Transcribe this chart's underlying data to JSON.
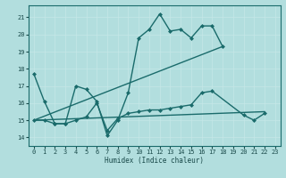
{
  "xlabel": "Humidex (Indice chaleur)",
  "xlim": [
    -0.5,
    23.5
  ],
  "ylim": [
    13.5,
    21.7
  ],
  "yticks": [
    14,
    15,
    16,
    17,
    18,
    19,
    20,
    21
  ],
  "xticks": [
    0,
    1,
    2,
    3,
    4,
    5,
    6,
    7,
    8,
    9,
    10,
    11,
    12,
    13,
    14,
    15,
    16,
    17,
    18,
    19,
    20,
    21,
    22,
    23
  ],
  "background_color": "#b2dede",
  "grid_color": "#c5e8e8",
  "line_color": "#1a6b6b",
  "lines": [
    {
      "x": [
        0,
        1,
        2,
        3,
        4,
        5,
        6,
        7,
        8,
        9,
        10,
        11,
        12,
        13,
        14,
        15,
        16,
        17,
        18
      ],
      "y": [
        17.7,
        16.1,
        14.8,
        14.8,
        17.0,
        16.8,
        16.1,
        14.1,
        15.0,
        16.6,
        19.8,
        20.3,
        21.2,
        20.2,
        20.3,
        19.8,
        20.5,
        20.5,
        19.3
      ],
      "marker": "D",
      "markersize": 2.0,
      "linewidth": 1.0
    },
    {
      "x": [
        0,
        1,
        2,
        3,
        4,
        5,
        6,
        7,
        8,
        9,
        10,
        11,
        12,
        13,
        14,
        15,
        16,
        17,
        20,
        21,
        22
      ],
      "y": [
        15.0,
        15.0,
        14.8,
        14.8,
        15.0,
        15.2,
        16.0,
        14.4,
        15.1,
        15.4,
        15.5,
        15.6,
        15.6,
        15.7,
        15.8,
        15.9,
        16.6,
        16.7,
        15.3,
        15.0,
        15.4
      ],
      "marker": "D",
      "markersize": 2.0,
      "linewidth": 1.0
    },
    {
      "x": [
        0,
        18
      ],
      "y": [
        15.0,
        19.3
      ],
      "marker": null,
      "markersize": 0,
      "linewidth": 1.0
    },
    {
      "x": [
        0,
        22
      ],
      "y": [
        15.0,
        15.5
      ],
      "marker": null,
      "markersize": 0,
      "linewidth": 1.0
    }
  ]
}
